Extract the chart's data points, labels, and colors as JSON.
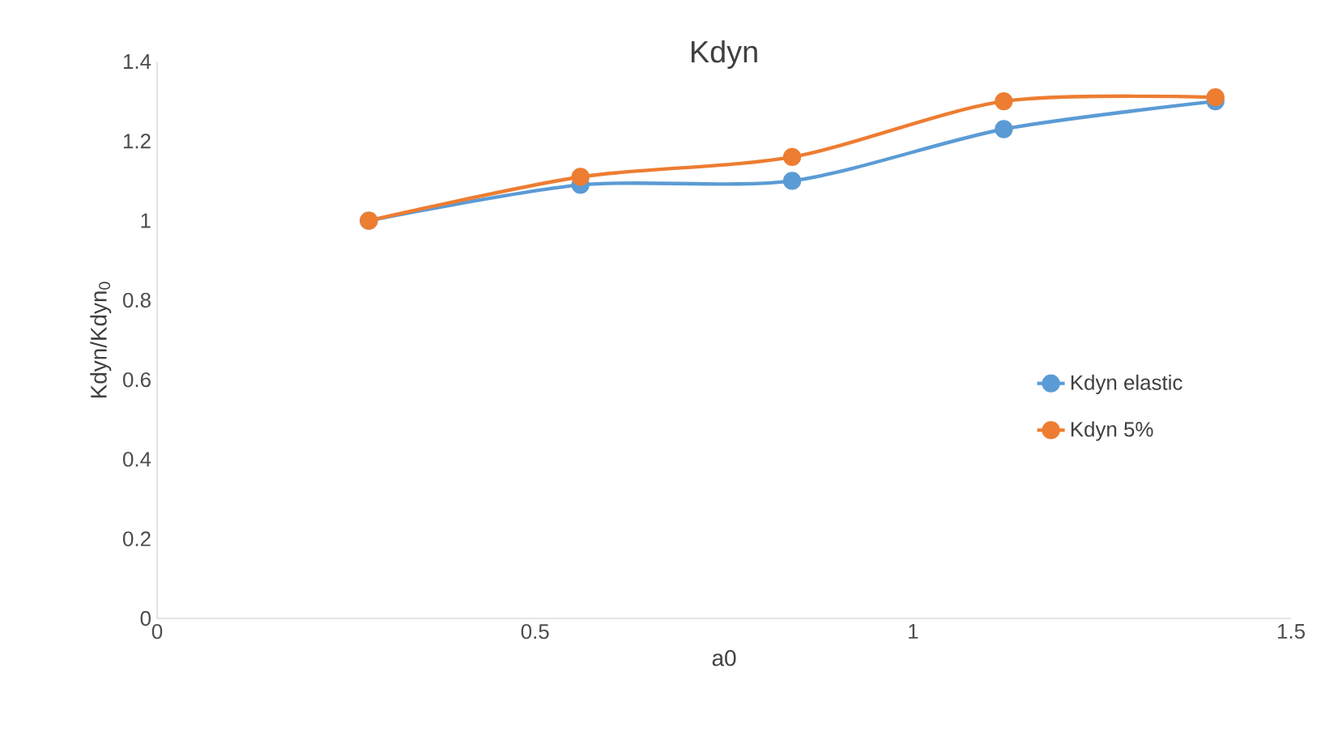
{
  "chart_data": {
    "type": "line",
    "title": "Kdyn",
    "xlabel": "a0",
    "ylabel": "Kdyn/Kdyn$_{0}$",
    "x": [
      0.28,
      0.56,
      0.84,
      1.12,
      1.4
    ],
    "series": [
      {
        "name": "Kdyn elastic",
        "color": "#5b9bd5",
        "values": [
          1.0,
          1.09,
          1.1,
          1.23,
          1.3
        ]
      },
      {
        "name": "Kdyn 5%",
        "color": "#ed7d31",
        "values": [
          1.0,
          1.11,
          1.16,
          1.3,
          1.31
        ]
      }
    ],
    "xlim": [
      0,
      1.5
    ],
    "xticks": [
      0,
      0.5,
      1,
      1.5
    ],
    "ylim": [
      0,
      1.4
    ],
    "yticks": [
      0,
      0.2,
      0.4,
      0.6,
      0.8,
      1,
      1.2,
      1.4
    ],
    "grid": false,
    "legend": "right",
    "marker": "circle",
    "line_style": "solid"
  }
}
